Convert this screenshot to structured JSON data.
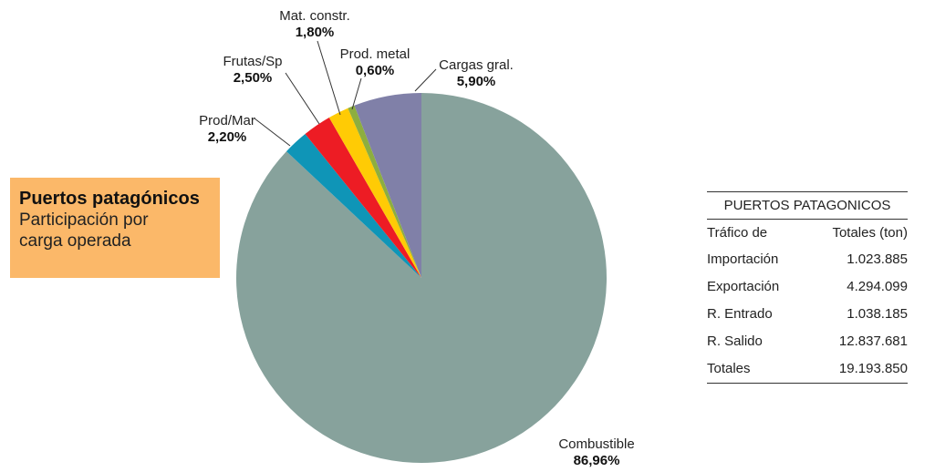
{
  "title": {
    "heading": "Puertos patagónicos",
    "subtitle": "Participación por carga operada"
  },
  "table": {
    "title": "PUERTOS PATAGONICOS",
    "header": {
      "col1": "Tráfico de",
      "col2": "Totales (ton)"
    },
    "rows": [
      {
        "label": "Importación",
        "value": "1.023.885"
      },
      {
        "label": "Exportación",
        "value": "4.294.099"
      },
      {
        "label": "R. Entrado",
        "value": "1.038.185"
      },
      {
        "label": "R. Salido",
        "value": "12.837.681"
      },
      {
        "label": "Totales",
        "value": "19.193.850"
      }
    ]
  },
  "chart_data": {
    "type": "pie",
    "title": "Puertos patagónicos",
    "subtitle": "Participación por carga operada",
    "start_angle_deg": 0,
    "direction": "clockwise",
    "slices": [
      {
        "name": "Combustible",
        "value": 86.96,
        "label": "86,96%",
        "color": "#87a29c"
      },
      {
        "name": "Prod/Mar",
        "value": 2.2,
        "label": "2,20%",
        "color": "#0f95b7"
      },
      {
        "name": "Frutas/Sp",
        "value": 2.5,
        "label": "2,50%",
        "color": "#ed1c24"
      },
      {
        "name": "Mat. constr.",
        "value": 1.8,
        "label": "1,80%",
        "color": "#ffcb05"
      },
      {
        "name": "Prod. metal",
        "value": 0.6,
        "label": "0,60%",
        "color": "#8dae3f"
      },
      {
        "name": "Cargas gral.",
        "value": 5.9,
        "label": "5,90%",
        "color": "#8080a8"
      }
    ]
  }
}
